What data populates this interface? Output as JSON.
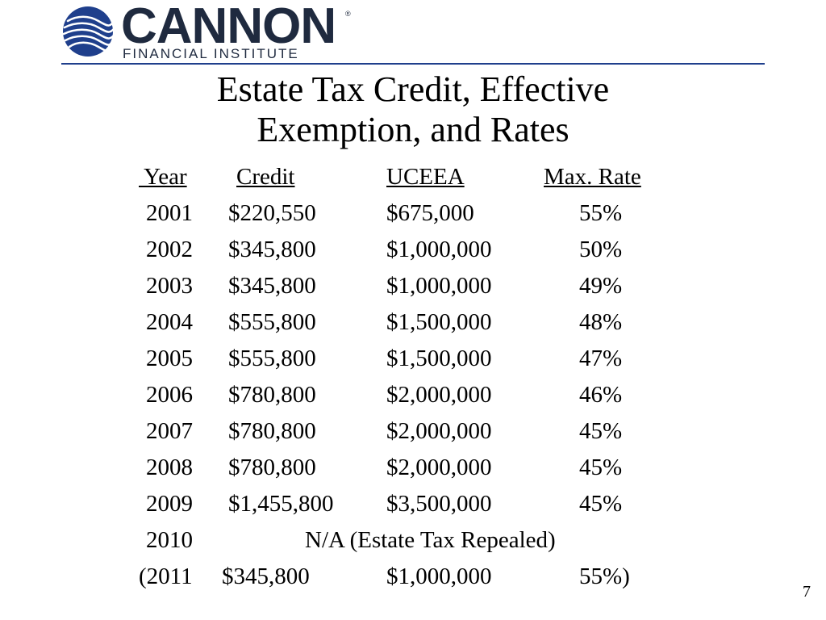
{
  "logo": {
    "word": "CANNON",
    "registered": "®",
    "subtitle": "FINANCIAL INSTITUTE",
    "colors": {
      "navy": "#1f2a3f",
      "blue": "#1f3f8c"
    }
  },
  "slide": {
    "title_line1": "Estate Tax Credit, Effective",
    "title_line2": "Exemption, and Rates",
    "page_number": "7"
  },
  "table": {
    "headers": {
      "year": " Year",
      "credit": "Credit",
      "uceea": "UCEEA",
      "rate": "Max. Rate"
    },
    "rows": [
      {
        "year": "2001",
        "credit": "$220,550",
        "uceea": "$675,000",
        "rate": "55%"
      },
      {
        "year": "2002",
        "credit": "$345,800",
        "uceea": "$1,000,000",
        "rate": "50%"
      },
      {
        "year": "2003",
        "credit": "$345,800",
        "uceea": "$1,000,000",
        "rate": "49%"
      },
      {
        "year": "2004",
        "credit": "$555,800",
        "uceea": "$1,500,000",
        "rate": "48%"
      },
      {
        "year": "2005",
        "credit": "$555,800",
        "uceea": "$1,500,000",
        "rate": "47%"
      },
      {
        "year": "2006",
        "credit": "$780,800",
        "uceea": "$2,000,000",
        "rate": "46%"
      },
      {
        "year": "2007",
        "credit": "$780,800",
        "uceea": "$2,000,000",
        "rate": "45%"
      },
      {
        "year": "2008",
        "credit": "$780,800",
        "uceea": "$2,000,000",
        "rate": "45%"
      },
      {
        "year": "2009",
        "credit": "$1,455,800",
        "uceea": "$3,500,000",
        "rate": "45%"
      }
    ],
    "repeal_row": {
      "year": "2010",
      "note": "N/A (Estate Tax Repealed)"
    },
    "sunset_row": {
      "year": "(2011",
      "credit": "$345,800",
      "uceea": "$1,000,000",
      "rate": "55%)"
    }
  }
}
